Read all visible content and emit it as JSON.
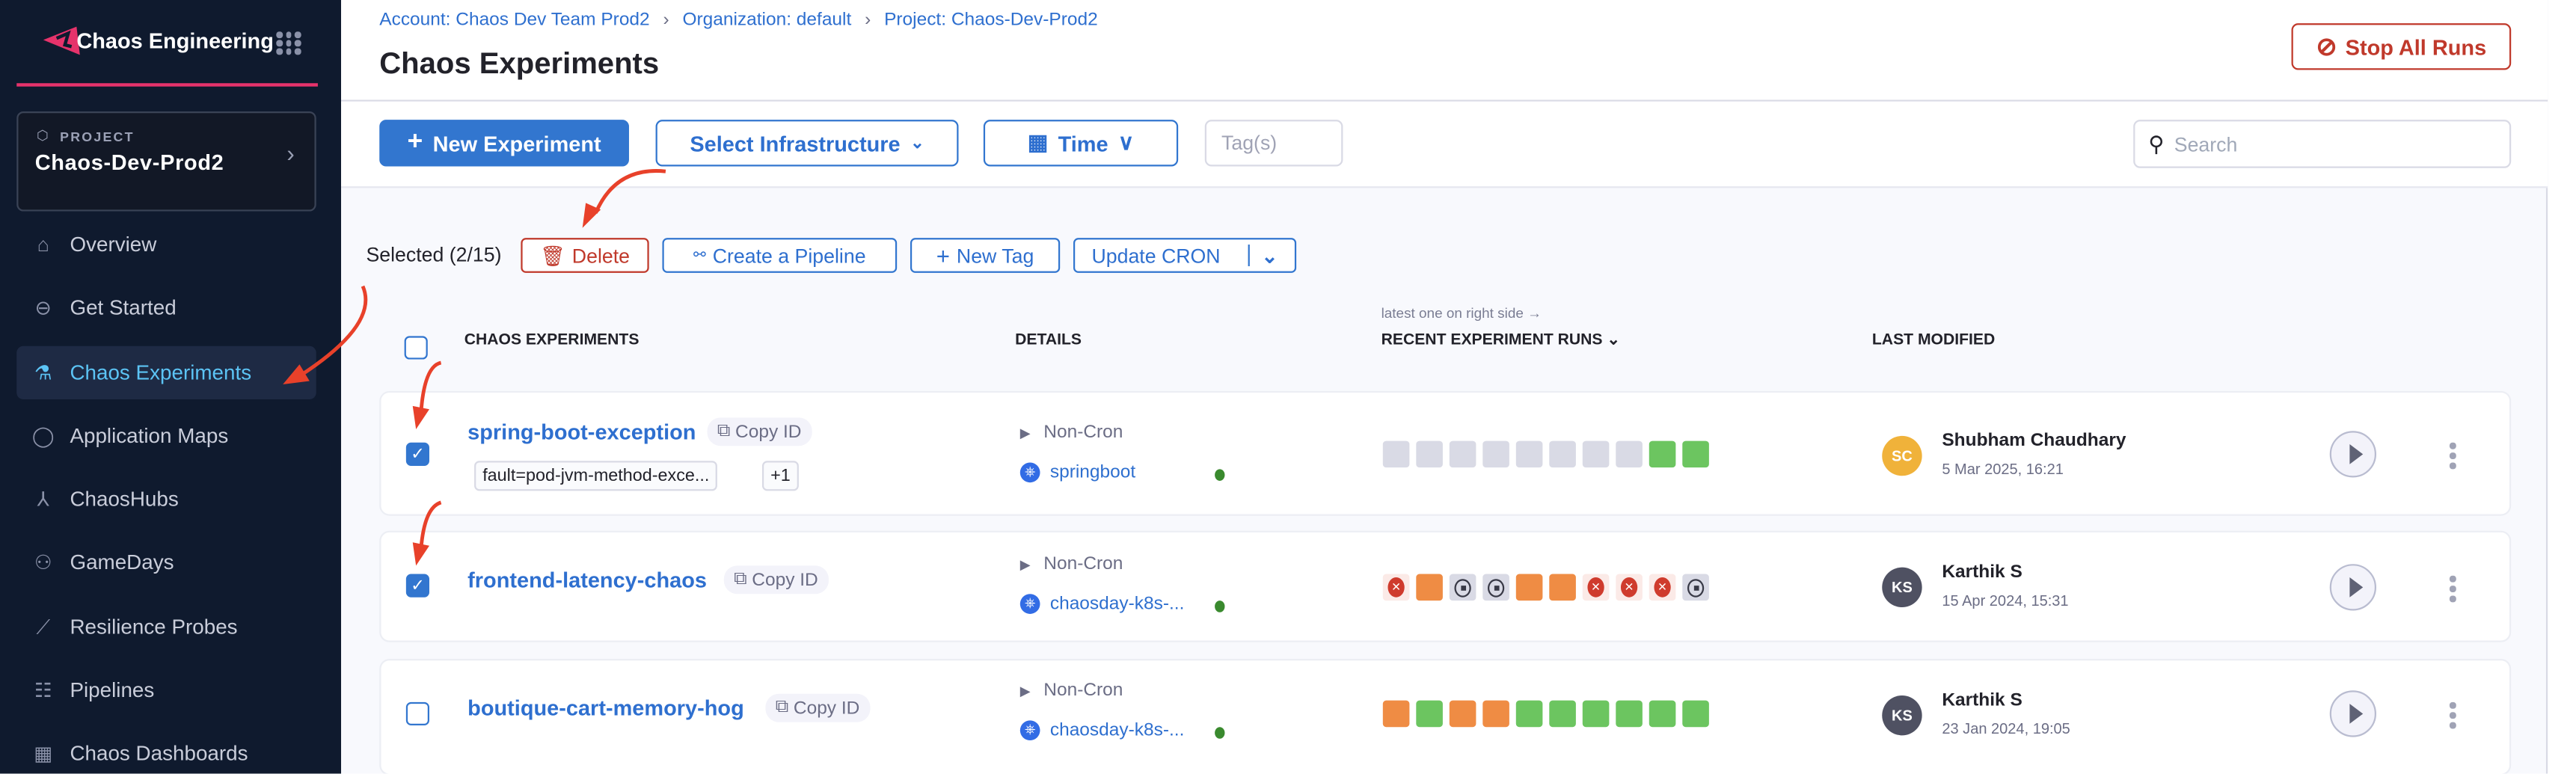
{
  "sidebar": {
    "app_title": "Chaos Engineering",
    "project_label": "PROJECT",
    "project_name": "Chaos-Dev-Prod2",
    "items": [
      {
        "label": "Overview",
        "icon": "home-icon"
      },
      {
        "label": "Get Started",
        "icon": "get-started-icon"
      },
      {
        "label": "Chaos Experiments",
        "icon": "flask-icon",
        "active": true
      },
      {
        "label": "Application Maps",
        "icon": "target-icon"
      },
      {
        "label": "ChaosHubs",
        "icon": "hub-icon"
      },
      {
        "label": "GameDays",
        "icon": "people-icon"
      },
      {
        "label": "Resilience Probes",
        "icon": "probe-icon"
      },
      {
        "label": "Pipelines",
        "icon": "pipeline-icon"
      },
      {
        "label": "Chaos Dashboards",
        "icon": "dashboard-icon"
      }
    ],
    "accent": "#e6336b"
  },
  "header": {
    "breadcrumbs": [
      "Account: Chaos Dev Team Prod2",
      "Organization: default",
      "Project: Chaos-Dev-Prod2"
    ],
    "title": "Chaos Experiments",
    "stop_all": "Stop All Runs"
  },
  "toolbar": {
    "new_experiment": "New Experiment",
    "select_infrastructure": "Select Infrastructure",
    "time": "Time",
    "tags_placeholder": "Tag(s)",
    "search_placeholder": "Search"
  },
  "selection": {
    "text": "Selected (2/15)",
    "delete": "Delete",
    "create_pipeline": "Create a Pipeline",
    "new_tag": "New Tag",
    "update_cron": "Update CRON"
  },
  "table": {
    "hint": "latest one on right side →",
    "headers": [
      "CHAOS EXPERIMENTS",
      "DETAILS",
      "RECENT EXPERIMENT RUNS",
      "LAST MODIFIED"
    ],
    "copy_id": "Copy ID",
    "rows": [
      {
        "name": "spring-boot-exception",
        "checked": true,
        "tags": [
          "fault=pod-jvm-method-exce...",
          "+1"
        ],
        "schedule": "Non-Cron",
        "infra": "springboot",
        "runs": [
          "none",
          "none",
          "none",
          "none",
          "none",
          "none",
          "none",
          "none",
          "success",
          "success"
        ],
        "user": "Shubham Chaudhary",
        "initials": "SC",
        "avatar_color": "#f0b23a",
        "date": "5 Mar 2025, 16:21"
      },
      {
        "name": "frontend-latency-chaos",
        "checked": true,
        "tags": [],
        "schedule": "Non-Cron",
        "infra": "chaosday-k8s-...",
        "runs": [
          "failed",
          "partial",
          "stopped",
          "stopped",
          "partial",
          "partial",
          "failed",
          "failed",
          "failed",
          "stopped"
        ],
        "user": "Karthik S",
        "initials": "KS",
        "avatar_color": "#4f5162",
        "date": "15 Apr 2024, 15:31"
      },
      {
        "name": "boutique-cart-memory-hog",
        "checked": false,
        "tags": [],
        "schedule": "Non-Cron",
        "infra": "chaosday-k8s-...",
        "runs": [
          "partial",
          "success",
          "partial",
          "partial",
          "success",
          "success",
          "success",
          "success",
          "success",
          "success"
        ],
        "user": "Karthik S",
        "initials": "KS",
        "avatar_color": "#4f5162",
        "date": "23 Jan 2024, 19:05"
      }
    ]
  },
  "colors": {
    "primary": "#3276cf",
    "danger": "#c0392b",
    "success": "#6cc560",
    "partial": "#ef8c44",
    "none": "#d9dae5",
    "failed_bg": "#fbeae7",
    "stopped_bg": "#d9dae5"
  }
}
